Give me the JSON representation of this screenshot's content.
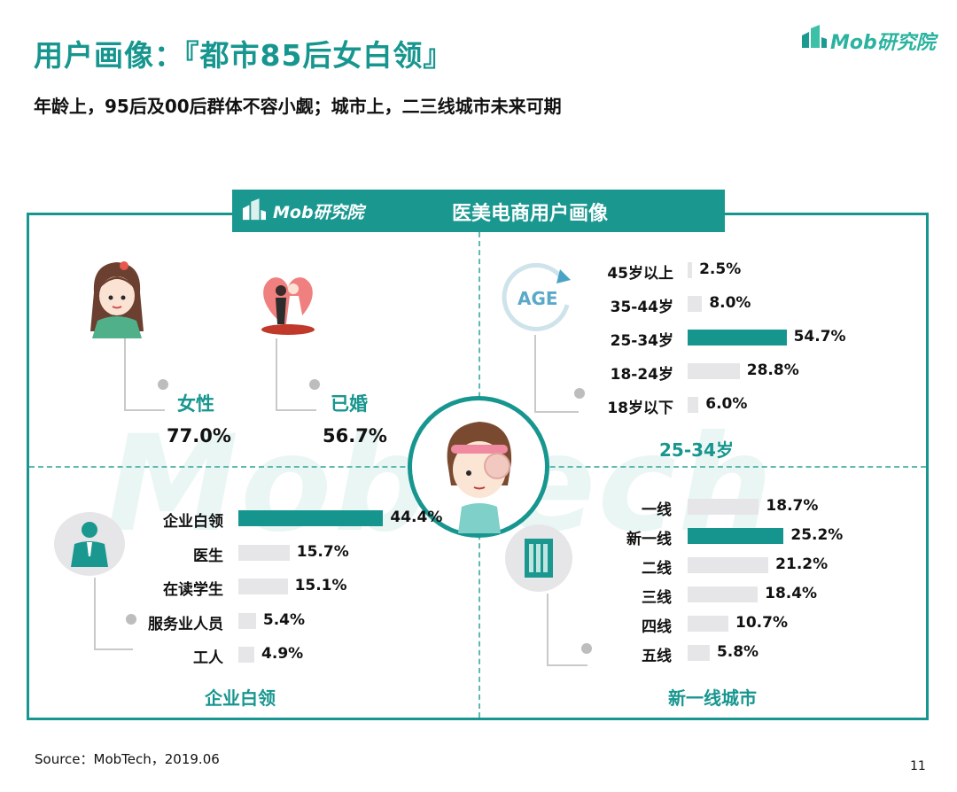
{
  "header": {
    "title": "用户画像：『都市85后女白领』",
    "subtitle": "年龄上，95后及00后群体不容小觑；城市上，二三线城市未来可期",
    "brand": "Mob研究院"
  },
  "panel": {
    "brand": "Mob研究院",
    "title": "医美电商用户画像",
    "watermark": "MobTech"
  },
  "colors": {
    "accent": "#17968f",
    "bar_highlight": "#16958e",
    "bar_default": "#e6e6e9"
  },
  "stats": [
    {
      "label": "女性",
      "value": "77.0%"
    },
    {
      "label": "已婚",
      "value": "56.7%"
    }
  ],
  "age_section": {
    "icon_text": "AGE",
    "caption": "25-34岁"
  },
  "occupation_section": {
    "caption": "企业白领"
  },
  "city_section": {
    "caption": "新一线城市"
  },
  "chart_data": [
    {
      "type": "bar",
      "name_hint": "age",
      "categories": [
        "45岁以上",
        "35-44岁",
        "25-34岁",
        "18-24岁",
        "18岁以下"
      ],
      "values": [
        2.5,
        8.0,
        54.7,
        28.8,
        6.0
      ],
      "labels": [
        "2.5%",
        "8.0%",
        "54.7%",
        "28.8%",
        "6.0%"
      ],
      "highlight": "25-34岁",
      "orientation": "horizontal"
    },
    {
      "type": "bar",
      "name_hint": "occupation",
      "categories": [
        "企业白领",
        "医生",
        "在读学生",
        "服务业人员",
        "工人"
      ],
      "values": [
        44.4,
        15.7,
        15.1,
        5.4,
        4.9
      ],
      "labels": [
        "44.4%",
        "15.7%",
        "15.1%",
        "5.4%",
        "4.9%"
      ],
      "highlight": "企业白领",
      "orientation": "horizontal"
    },
    {
      "type": "bar",
      "name_hint": "city",
      "categories": [
        "一线",
        "新一线",
        "二线",
        "三线",
        "四线",
        "五线"
      ],
      "values": [
        18.7,
        25.2,
        21.2,
        18.4,
        10.7,
        5.8
      ],
      "labels": [
        "18.7%",
        "25.2%",
        "21.2%",
        "18.4%",
        "10.7%",
        "5.8%"
      ],
      "highlight": "新一线",
      "orientation": "horizontal"
    }
  ],
  "footer": {
    "source": "Source：MobTech，2019.06",
    "page": "11"
  }
}
